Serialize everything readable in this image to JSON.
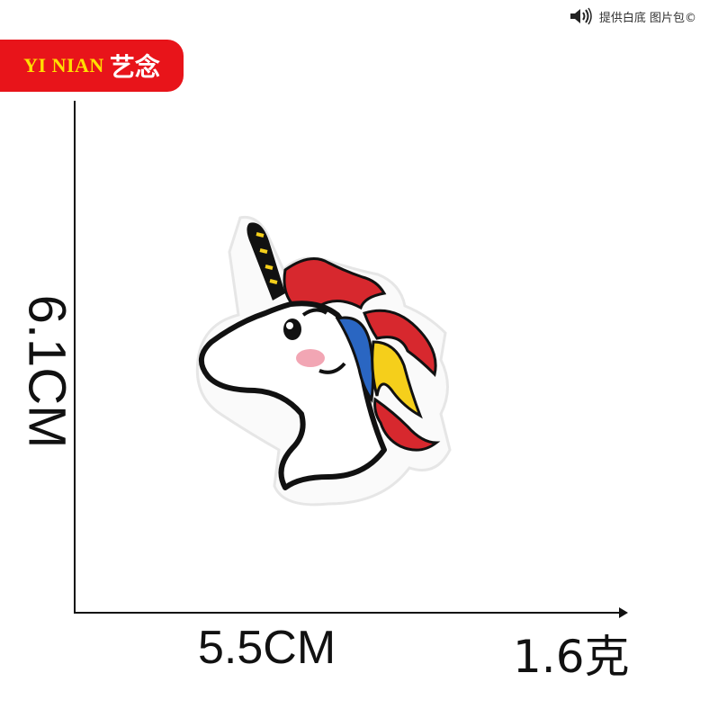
{
  "brand": {
    "latin": "YI NIAN",
    "chinese": "艺念",
    "background_color": "#e8141a",
    "latin_color": "#ffe000"
  },
  "watermark": {
    "text": "提供白底 图片包©",
    "icon": "speaker-icon"
  },
  "dimensions": {
    "height_label": "6.1CM",
    "width_label": "5.5CM",
    "weight_label": "1.6克"
  },
  "product": {
    "name": "unicorn-embroidered-patch",
    "colors": [
      "#111111",
      "#d7282e",
      "#2a66c2",
      "#f5cf1b",
      "#f2a6b4",
      "#ffffff"
    ]
  }
}
